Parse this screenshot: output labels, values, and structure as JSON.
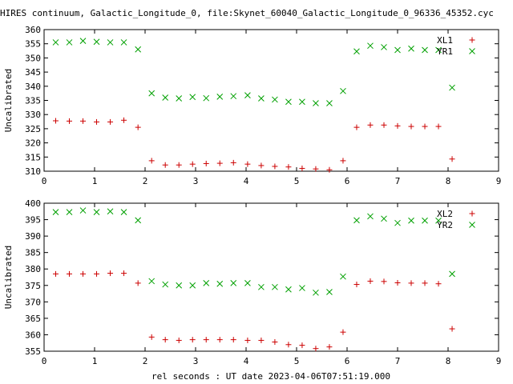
{
  "title": "HIRES continuum, Galactic_Longitude_0, file:Skynet_60040_Galactic_Longitude_0_96336_45352.cyc",
  "xlabel": "rel seconds : UT date 2023-04-06T07:51:19.000",
  "colors": {
    "series1": "#cc0000",
    "series2": "#00a000",
    "axis": "#000000"
  },
  "chart_data": [
    {
      "type": "scatter",
      "ylabel": "Uncalibrated",
      "xlim": [
        0,
        9
      ],
      "ylim": [
        310,
        360
      ],
      "xticks": [
        0,
        1,
        2,
        3,
        4,
        5,
        6,
        7,
        8,
        9
      ],
      "yticks": [
        310,
        315,
        320,
        325,
        330,
        335,
        340,
        345,
        350,
        355,
        360
      ],
      "legend_position": "top-right",
      "series": [
        {
          "name": "XL1",
          "marker": "plus",
          "color": "#cc0000",
          "x": [
            0.23,
            0.5,
            0.77,
            1.04,
            1.31,
            1.58,
            1.86,
            2.13,
            2.4,
            2.67,
            2.94,
            3.21,
            3.48,
            3.75,
            4.03,
            4.3,
            4.57,
            4.84,
            5.11,
            5.38,
            5.65,
            5.92,
            6.19,
            6.46,
            6.73,
            7.0,
            7.27,
            7.54,
            7.81,
            8.08
          ],
          "y": [
            327.8,
            327.7,
            327.7,
            327.4,
            327.4,
            328.0,
            325.5,
            313.7,
            312.2,
            312.2,
            312.5,
            312.7,
            312.8,
            313.0,
            312.5,
            312.0,
            311.7,
            311.5,
            311.0,
            310.8,
            310.5,
            313.7,
            325.5,
            326.3,
            326.3,
            326.0,
            325.8,
            325.8,
            325.8,
            314.3
          ]
        },
        {
          "name": "YR1",
          "marker": "cross",
          "color": "#00a000",
          "x": [
            0.23,
            0.5,
            0.77,
            1.04,
            1.31,
            1.58,
            1.86,
            2.13,
            2.4,
            2.67,
            2.94,
            3.21,
            3.48,
            3.75,
            4.03,
            4.3,
            4.57,
            4.84,
            5.11,
            5.38,
            5.65,
            5.92,
            6.19,
            6.46,
            6.73,
            7.0,
            7.27,
            7.54,
            7.81,
            8.08
          ],
          "y": [
            355.5,
            355.5,
            356.0,
            355.7,
            355.5,
            355.5,
            353.0,
            337.5,
            336.0,
            335.7,
            336.2,
            335.8,
            336.3,
            336.5,
            336.8,
            335.7,
            335.3,
            334.5,
            334.5,
            334.0,
            334.0,
            338.3,
            352.3,
            354.3,
            353.8,
            352.8,
            353.3,
            352.8,
            352.8,
            339.5
          ]
        }
      ]
    },
    {
      "type": "scatter",
      "ylabel": "Uncalibrated",
      "xlim": [
        0,
        9
      ],
      "ylim": [
        355,
        400
      ],
      "xticks": [
        0,
        1,
        2,
        3,
        4,
        5,
        6,
        7,
        8,
        9
      ],
      "yticks": [
        355,
        360,
        365,
        370,
        375,
        380,
        385,
        390,
        395,
        400
      ],
      "legend_position": "top-right",
      "series": [
        {
          "name": "XL2",
          "marker": "plus",
          "color": "#cc0000",
          "x": [
            0.23,
            0.5,
            0.77,
            1.04,
            1.31,
            1.58,
            1.86,
            2.13,
            2.4,
            2.67,
            2.94,
            3.21,
            3.48,
            3.75,
            4.03,
            4.3,
            4.57,
            4.84,
            5.11,
            5.38,
            5.65,
            5.92,
            6.19,
            6.46,
            6.73,
            7.0,
            7.27,
            7.54,
            7.81,
            8.08
          ],
          "y": [
            378.5,
            378.5,
            378.5,
            378.5,
            378.7,
            378.7,
            375.7,
            359.3,
            358.5,
            358.3,
            358.5,
            358.5,
            358.5,
            358.5,
            358.3,
            358.3,
            357.8,
            357.0,
            356.8,
            355.8,
            356.3,
            360.8,
            375.3,
            376.3,
            376.2,
            375.8,
            375.7,
            375.7,
            375.5,
            361.8
          ]
        },
        {
          "name": "YR2",
          "marker": "cross",
          "color": "#00a000",
          "x": [
            0.23,
            0.5,
            0.77,
            1.04,
            1.31,
            1.58,
            1.86,
            2.13,
            2.4,
            2.67,
            2.94,
            3.21,
            3.48,
            3.75,
            4.03,
            4.3,
            4.57,
            4.84,
            5.11,
            5.38,
            5.65,
            5.92,
            6.19,
            6.46,
            6.73,
            7.0,
            7.27,
            7.54,
            7.81,
            8.08
          ],
          "y": [
            397.3,
            397.3,
            397.8,
            397.3,
            397.5,
            397.3,
            394.8,
            376.3,
            375.3,
            375.0,
            375.0,
            375.7,
            375.5,
            375.7,
            375.7,
            374.5,
            374.5,
            373.8,
            374.2,
            372.8,
            373.0,
            377.7,
            394.8,
            396.0,
            395.3,
            394.0,
            394.7,
            394.7,
            394.7,
            378.5
          ]
        }
      ]
    }
  ]
}
